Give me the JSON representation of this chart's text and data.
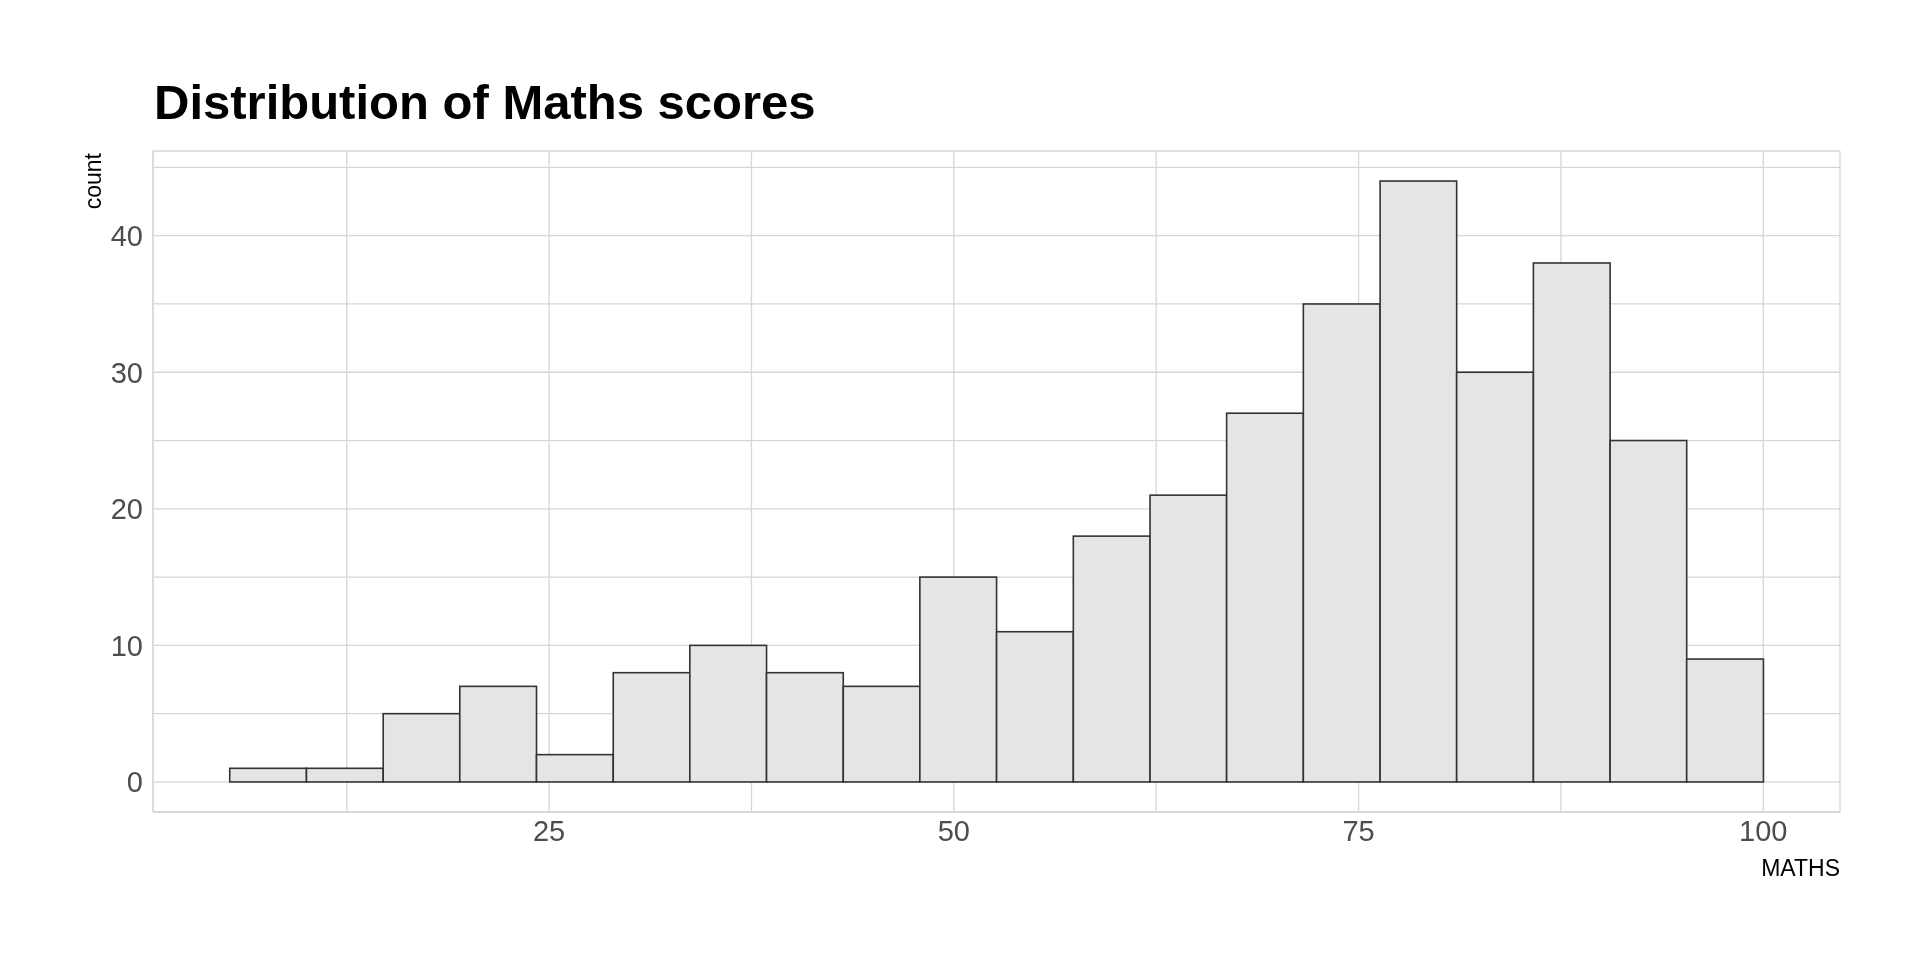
{
  "chart_data": {
    "type": "histogram",
    "title": "Distribution of Maths scores",
    "xlabel": "MATHS",
    "ylabel": "count",
    "bins": [
      5.26,
      10,
      14.74,
      19.47,
      24.21,
      28.95,
      33.68,
      38.42,
      43.16,
      47.89,
      52.63,
      57.37,
      62.11,
      66.84,
      71.58,
      76.32,
      81.05,
      85.79,
      90.53,
      95.26,
      100
    ],
    "values": [
      1,
      1,
      5,
      7,
      2,
      8,
      10,
      8,
      7,
      15,
      11,
      18,
      21,
      27,
      35,
      44,
      30,
      38,
      25,
      9
    ],
    "color": "#e5e5e5",
    "xlim": [
      0.53,
      104.74
    ],
    "xticks": [
      {
        "value": 12.5,
        "label": null
      },
      25,
      {
        "value": 37.5,
        "label": null
      },
      50,
      {
        "value": 62.5,
        "label": null
      },
      75,
      {
        "value": 87.5,
        "label": null
      },
      100
    ],
    "ylim": [
      -2.2,
      46.2
    ],
    "yticks": [
      0,
      {
        "value": 5,
        "label": null
      },
      10,
      {
        "value": 15,
        "label": null
      },
      20,
      {
        "value": 25,
        "label": null
      },
      30,
      {
        "value": 35,
        "label": null
      },
      40,
      {
        "value": 45,
        "label": null
      }
    ],
    "grid": true
  }
}
